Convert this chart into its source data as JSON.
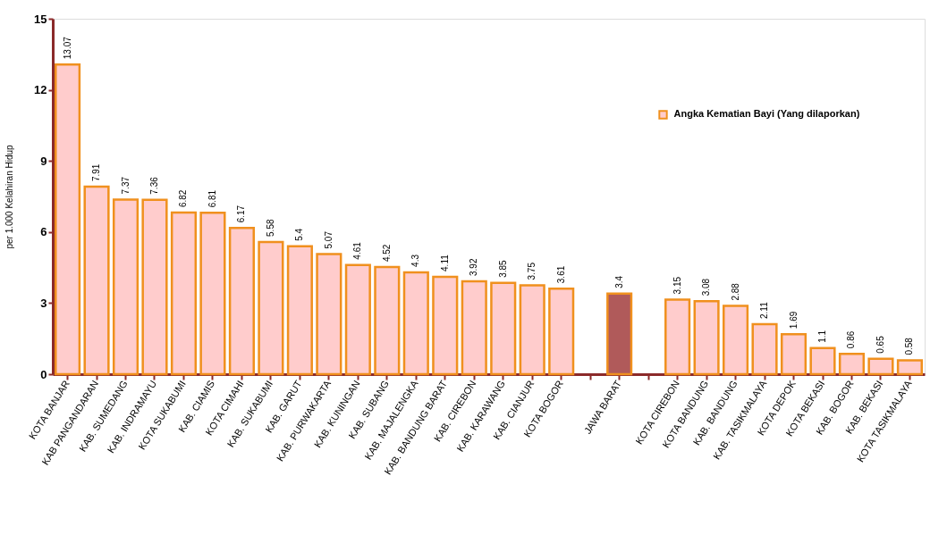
{
  "chart_data": {
    "type": "bar",
    "ylabel": "per 1.000 Kelahiran Hidup",
    "categories": [
      "KOTA BANJAR",
      "KAB PANGANDARAN",
      "KAB. SUMEDANG",
      "KAB. INDRAMAYU",
      "KOTA SUKABUMI",
      "KAB. CIAMIS",
      "KOTA CIMAHI",
      "KAB. SUKABUMI",
      "KAB. GARUT",
      "KAB. PURWAKARTA",
      "KAB. KUNINGAN",
      "KAB. SUBANG",
      "KAB. MAJALENGKA",
      "KAB. BANDUNG BARAT",
      "KAB. CIREBON",
      "KAB. KARAWANG",
      "KAB. CIANJUR",
      "KOTA BOGOR",
      null,
      "JAWA BARAT",
      null,
      "KOTA CIREBON",
      "KOTA BANDUNG",
      "KAB. BANDUNG",
      "KAB. TASIKMALAYA",
      "KOTA DEPOK",
      "KOTA BEKASI",
      "KAB. BOGOR",
      "KAB. BEKASI",
      "KOTA TASIKMALAYA"
    ],
    "series": [
      {
        "name": "Angka Kematian Bayi (Yang dilaporkan)",
        "color": "#ffcccc",
        "values": [
          13.07,
          7.91,
          7.37,
          7.36,
          6.82,
          6.81,
          6.17,
          5.58,
          5.4,
          5.07,
          4.61,
          4.52,
          4.3,
          4.11,
          3.92,
          3.85,
          3.75,
          3.61,
          null,
          3.4,
          null,
          3.15,
          3.08,
          2.88,
          2.11,
          1.69,
          1.1,
          0.86,
          0.65,
          0.58
        ],
        "colors": [
          "#ffcccc",
          "#ffcccc",
          "#ffcccc",
          "#ffcccc",
          "#ffcccc",
          "#ffcccc",
          "#ffcccc",
          "#ffcccc",
          "#ffcccc",
          "#ffcccc",
          "#ffcccc",
          "#ffcccc",
          "#ffcccc",
          "#ffcccc",
          "#ffcccc",
          "#ffcccc",
          "#ffcccc",
          "#ffcccc",
          null,
          "#b05a5a",
          null,
          "#ffcccc",
          "#ffcccc",
          "#ffcccc",
          "#ffcccc",
          "#ffcccc",
          "#ffcccc",
          "#ffcccc",
          "#ffcccc",
          "#ffcccc"
        ]
      }
    ],
    "ylim": [
      0,
      15
    ],
    "yticks": [
      0,
      3,
      6,
      9,
      12,
      15
    ],
    "data_labels": true,
    "legend": "top right",
    "grid": false
  }
}
